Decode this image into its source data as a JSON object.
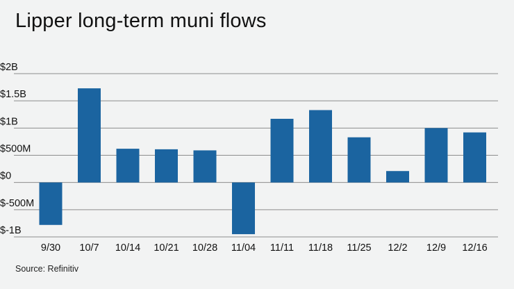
{
  "title": "Lipper long-term muni flows",
  "source": "Source: Refinitiv",
  "colors": {
    "bar": "#1b64a0",
    "grid": "#8c8c8c",
    "background": "#f2f3f3"
  },
  "chart_data": {
    "type": "bar",
    "title": "Lipper long-term muni flows",
    "xlabel": "",
    "ylabel": "",
    "categories": [
      "9/30",
      "10/7",
      "10/14",
      "10/21",
      "10/28",
      "11/04",
      "11/11",
      "11/18",
      "11/25",
      "12/2",
      "12/9",
      "12/16"
    ],
    "values": [
      -780,
      1730,
      620,
      610,
      590,
      -950,
      1170,
      1330,
      830,
      210,
      1000,
      920
    ],
    "units": "millions of dollars",
    "ylim": [
      -1000,
      2000
    ],
    "yticks": [
      2000,
      1500,
      1000,
      500,
      0,
      -500,
      -1000
    ],
    "ytick_labels": [
      "$2B",
      "$1.5B",
      "$1B",
      "$500M",
      "$0",
      "$-500M",
      "$-1B"
    ],
    "grid": true,
    "legend": "none"
  }
}
